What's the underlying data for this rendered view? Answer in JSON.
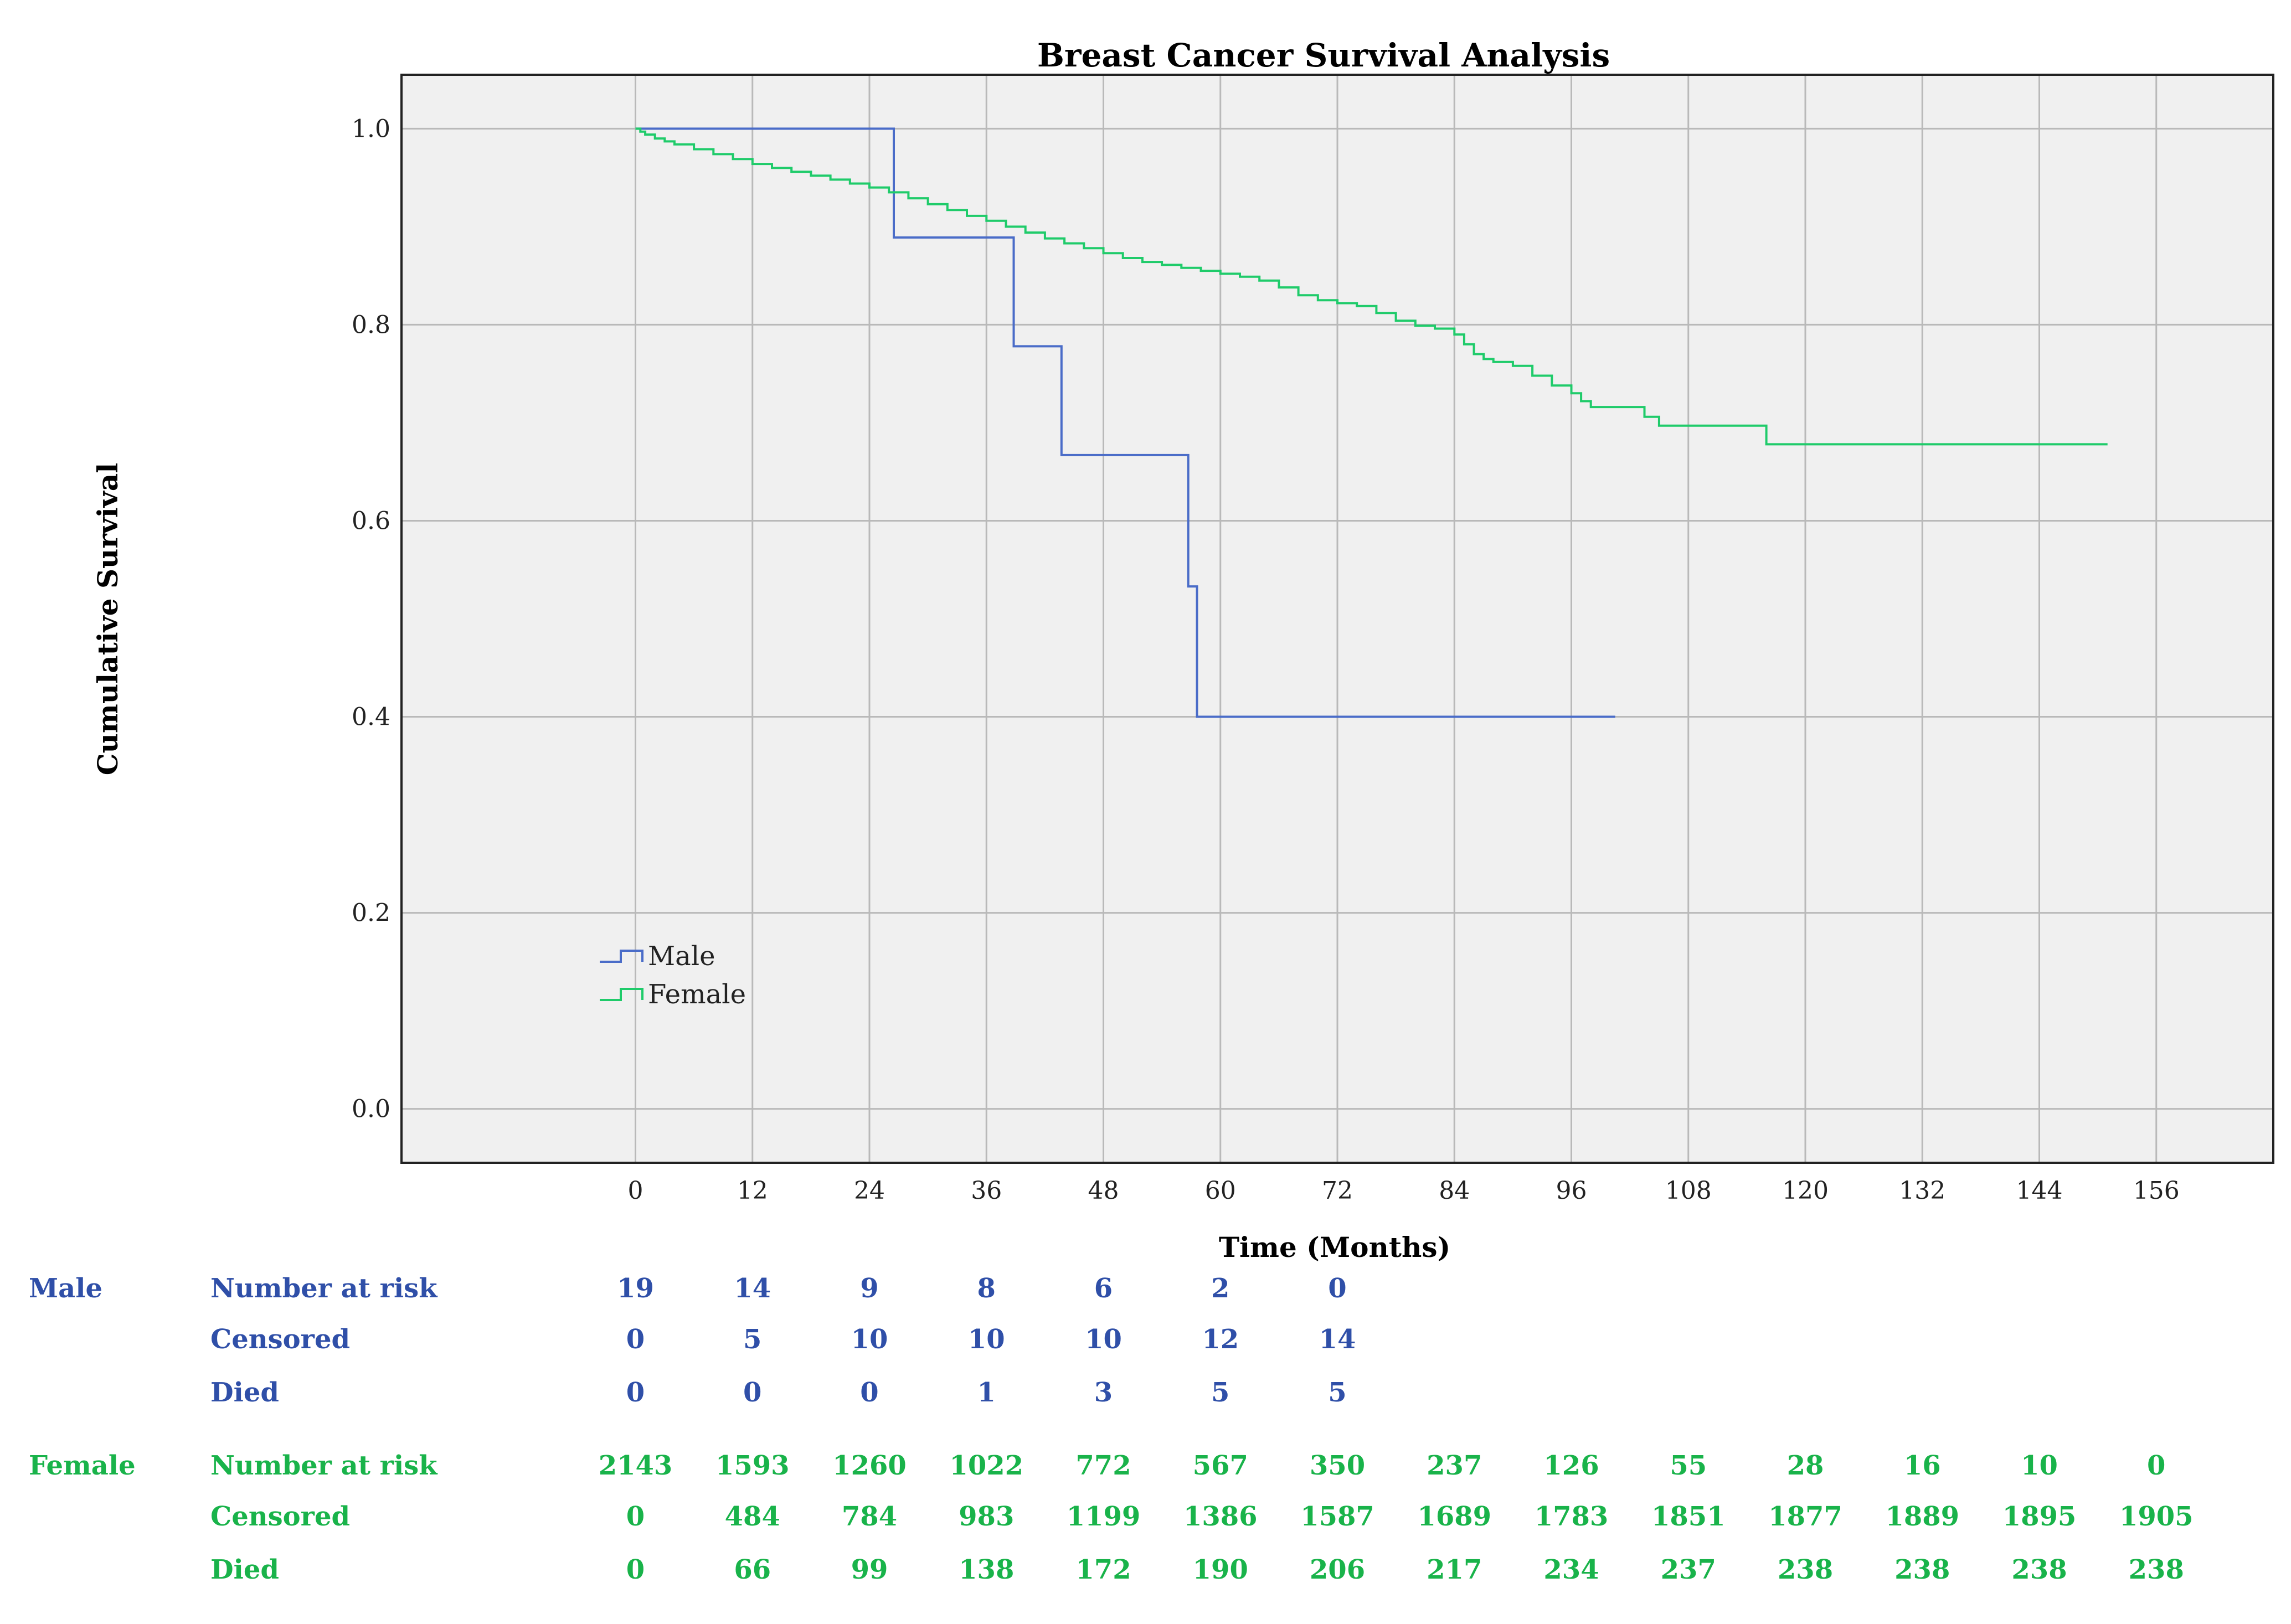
{
  "chart_data": {
    "type": "line",
    "title": "Breast Cancer Survival Analysis",
    "xlabel": "Time (Months)",
    "ylabel": "Cumulative Survival",
    "xlim": [
      -24,
      168
    ],
    "ylim": [
      -0.055,
      1.055
    ],
    "x_ticks": [
      "0",
      "12",
      "24",
      "36",
      "48",
      "60",
      "72",
      "84",
      "96",
      "108",
      "120",
      "132",
      "144",
      "156"
    ],
    "y_ticks": [
      "0.0",
      "0.2",
      "0.4",
      "0.6",
      "0.8",
      "1.0"
    ],
    "grid": true,
    "legend_position": "bottom-left",
    "colors": {
      "male": "#4a6cc8",
      "female": "#1fcb6a"
    },
    "series": [
      {
        "name": "Male",
        "step": true,
        "x": [
          0,
          26.5,
          38.8,
          43.7,
          56.7,
          57.6,
          100.5
        ],
        "y": [
          1.0,
          0.889,
          0.778,
          0.667,
          0.533,
          0.4,
          0.4
        ]
      },
      {
        "name": "Female",
        "step": true,
        "x": [
          0,
          0.5,
          1,
          2,
          3,
          4,
          6,
          8,
          10,
          12,
          14,
          16,
          18,
          20,
          22,
          24,
          26,
          28,
          30,
          32,
          34,
          36,
          38,
          40,
          42,
          44,
          46,
          48,
          50,
          52,
          54,
          56,
          58,
          60,
          62,
          64,
          66,
          68,
          70,
          72,
          74,
          76,
          78,
          80,
          82,
          84,
          85,
          86,
          87,
          88,
          90,
          92,
          94,
          96,
          97,
          98,
          100,
          102,
          103.5,
          105,
          108,
          110,
          112,
          114,
          116,
          151
        ],
        "y": [
          1.0,
          0.997,
          0.994,
          0.99,
          0.987,
          0.984,
          0.979,
          0.974,
          0.969,
          0.964,
          0.96,
          0.956,
          0.952,
          0.948,
          0.944,
          0.94,
          0.935,
          0.929,
          0.923,
          0.917,
          0.911,
          0.906,
          0.9,
          0.894,
          0.888,
          0.883,
          0.878,
          0.873,
          0.868,
          0.864,
          0.861,
          0.858,
          0.855,
          0.852,
          0.849,
          0.845,
          0.838,
          0.83,
          0.825,
          0.822,
          0.819,
          0.812,
          0.804,
          0.799,
          0.796,
          0.79,
          0.78,
          0.77,
          0.765,
          0.762,
          0.758,
          0.748,
          0.738,
          0.73,
          0.722,
          0.716,
          0.716,
          0.716,
          0.706,
          0.697,
          0.697,
          0.697,
          0.697,
          0.697,
          0.678,
          0.678
        ]
      }
    ],
    "risk_table": {
      "col_times": [
        0,
        12,
        24,
        36,
        48,
        60,
        72,
        84,
        96,
        108,
        120,
        132,
        144,
        156
      ],
      "groups": [
        {
          "name": "Male",
          "rows": [
            {
              "label": "Number at risk",
              "values": [
                "19",
                "14",
                "9",
                "8",
                "6",
                "2",
                "0"
              ]
            },
            {
              "label": "Censored",
              "values": [
                "0",
                "5",
                "10",
                "10",
                "10",
                "12",
                "14"
              ]
            },
            {
              "label": "Died",
              "values": [
                "0",
                "0",
                "0",
                "1",
                "3",
                "5",
                "5"
              ]
            }
          ]
        },
        {
          "name": "Female",
          "rows": [
            {
              "label": "Number at risk",
              "values": [
                "2143",
                "1593",
                "1260",
                "1022",
                "772",
                "567",
                "350",
                "237",
                "126",
                "55",
                "28",
                "16",
                "10",
                "0"
              ]
            },
            {
              "label": "Censored",
              "values": [
                "0",
                "484",
                "784",
                "983",
                "1199",
                "1386",
                "1587",
                "1689",
                "1783",
                "1851",
                "1877",
                "1889",
                "1895",
                "1905"
              ]
            },
            {
              "label": "Died",
              "values": [
                "0",
                "66",
                "99",
                "138",
                "172",
                "190",
                "206",
                "217",
                "234",
                "237",
                "238",
                "238",
                "238",
                "238"
              ]
            }
          ]
        }
      ]
    }
  }
}
